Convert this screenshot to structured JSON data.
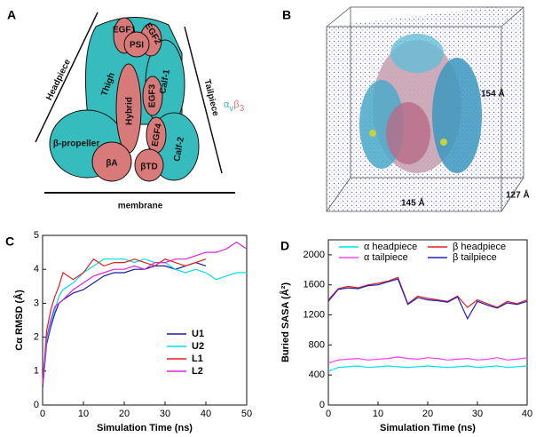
{
  "panel_a": {
    "letter": "A",
    "headpiece": "Headpiece",
    "tailpiece": "Tailpiece",
    "thigh": "Thigh",
    "egf1": "EGF1",
    "egf2": "EGF2",
    "psi": "PSI",
    "hybrid": "Hybrid",
    "egf3": "EGF3",
    "egf4": "EGF4",
    "calf1": "Calf-1",
    "calf2": "Calf-2",
    "propeller": "β-propeller",
    "betaA": "βA",
    "betaTD": "βTD",
    "membrane": "membrane",
    "integrin": [
      "α",
      "v",
      "β",
      "3"
    ]
  },
  "panel_b": {
    "letter": "B",
    "height": "154 Å",
    "width": "145 Å",
    "depth": "127 Å"
  },
  "chart_data": [
    {
      "type": "line",
      "panel": "C",
      "xlabel": "Simulation Time (ns)",
      "ylabel": "Cα RMSD (Å)",
      "x": [
        0,
        1,
        2,
        3,
        4,
        5,
        7.5,
        10,
        12.5,
        15,
        17.5,
        20,
        22.5,
        25,
        27.5,
        30,
        32.5,
        35,
        37.5,
        40,
        42.5,
        45,
        47.5,
        50
      ],
      "xlim": [
        0,
        50
      ],
      "xticks": [
        0,
        10,
        20,
        30,
        40,
        50
      ],
      "ylim": [
        0,
        5
      ],
      "yticks": [
        0,
        1,
        2,
        3,
        4,
        5
      ],
      "legend": "lower right",
      "series": [
        {
          "name": "U1",
          "color": "#1a1aa0",
          "values": [
            0.5,
            1.8,
            2.3,
            2.7,
            3.0,
            3.1,
            3.3,
            3.4,
            3.6,
            3.8,
            3.9,
            3.9,
            4.0,
            4.0,
            4.1,
            4.1,
            4.0,
            4.1,
            4.2,
            4.1,
            null,
            null,
            null,
            null
          ]
        },
        {
          "name": "U2",
          "color": "#00e0ee",
          "values": [
            0.6,
            1.9,
            2.4,
            2.8,
            3.2,
            3.4,
            3.6,
            3.9,
            4.1,
            4.3,
            4.3,
            4.3,
            4.2,
            4.3,
            4.2,
            4.2,
            4.0,
            3.9,
            4.0,
            3.9,
            3.7,
            3.8,
            3.9,
            3.9
          ]
        },
        {
          "name": "L1",
          "color": "#e02020",
          "values": [
            0.6,
            2.2,
            2.8,
            3.2,
            3.5,
            3.9,
            3.7,
            3.9,
            4.3,
            4.1,
            4.2,
            4.2,
            4.3,
            4.2,
            4.1,
            4.3,
            4.2,
            4.1,
            4.2,
            4.3,
            null,
            null,
            null,
            null
          ]
        },
        {
          "name": "L2",
          "color": "#e020e0",
          "values": [
            0.7,
            2.0,
            2.5,
            2.9,
            3.0,
            3.1,
            3.4,
            3.6,
            3.8,
            3.9,
            4.0,
            4.0,
            4.1,
            4.0,
            4.2,
            4.2,
            4.3,
            4.3,
            4.4,
            4.5,
            4.5,
            4.6,
            4.8,
            4.6
          ]
        }
      ]
    },
    {
      "type": "line",
      "panel": "D",
      "xlabel": "Simulation Time (ns)",
      "ylabel": "Buried SASA (Å²)",
      "x": [
        0,
        2,
        4,
        6,
        8,
        10,
        12,
        14,
        16,
        18,
        20,
        22,
        24,
        26,
        28,
        30,
        32,
        34,
        36,
        38,
        40
      ],
      "xlim": [
        0,
        40
      ],
      "xticks": [
        0,
        10,
        20,
        30,
        40
      ],
      "ylim": [
        0,
        2200
      ],
      "yticks": [
        0,
        400,
        800,
        1200,
        1600,
        2000
      ],
      "legend": "upper center",
      "series": [
        {
          "name": "α headpiece",
          "color": "#00e0ee",
          "values": [
            450,
            500,
            510,
            520,
            500,
            510,
            520,
            510,
            500,
            510,
            520,
            510,
            500,
            510,
            520,
            500,
            510,
            520,
            500,
            510,
            520
          ]
        },
        {
          "name": "β headpiece",
          "color": "#e02020",
          "values": [
            1400,
            1550,
            1580,
            1560,
            1600,
            1620,
            1650,
            1700,
            1350,
            1450,
            1420,
            1400,
            1380,
            1450,
            1300,
            1400,
            1350,
            1300,
            1380,
            1350,
            1400
          ]
        },
        {
          "name": "α tailpiece",
          "color": "#ff40ff",
          "values": [
            560,
            600,
            610,
            620,
            600,
            610,
            620,
            640,
            620,
            610,
            630,
            620,
            600,
            610,
            620,
            600,
            610,
            630,
            600,
            610,
            630
          ]
        },
        {
          "name": "β tailpiece",
          "color": "#2020c0",
          "values": [
            1380,
            1540,
            1560,
            1550,
            1590,
            1600,
            1640,
            1680,
            1340,
            1430,
            1400,
            1390,
            1370,
            1440,
            1150,
            1380,
            1330,
            1290,
            1360,
            1340,
            1380
          ]
        }
      ]
    }
  ]
}
